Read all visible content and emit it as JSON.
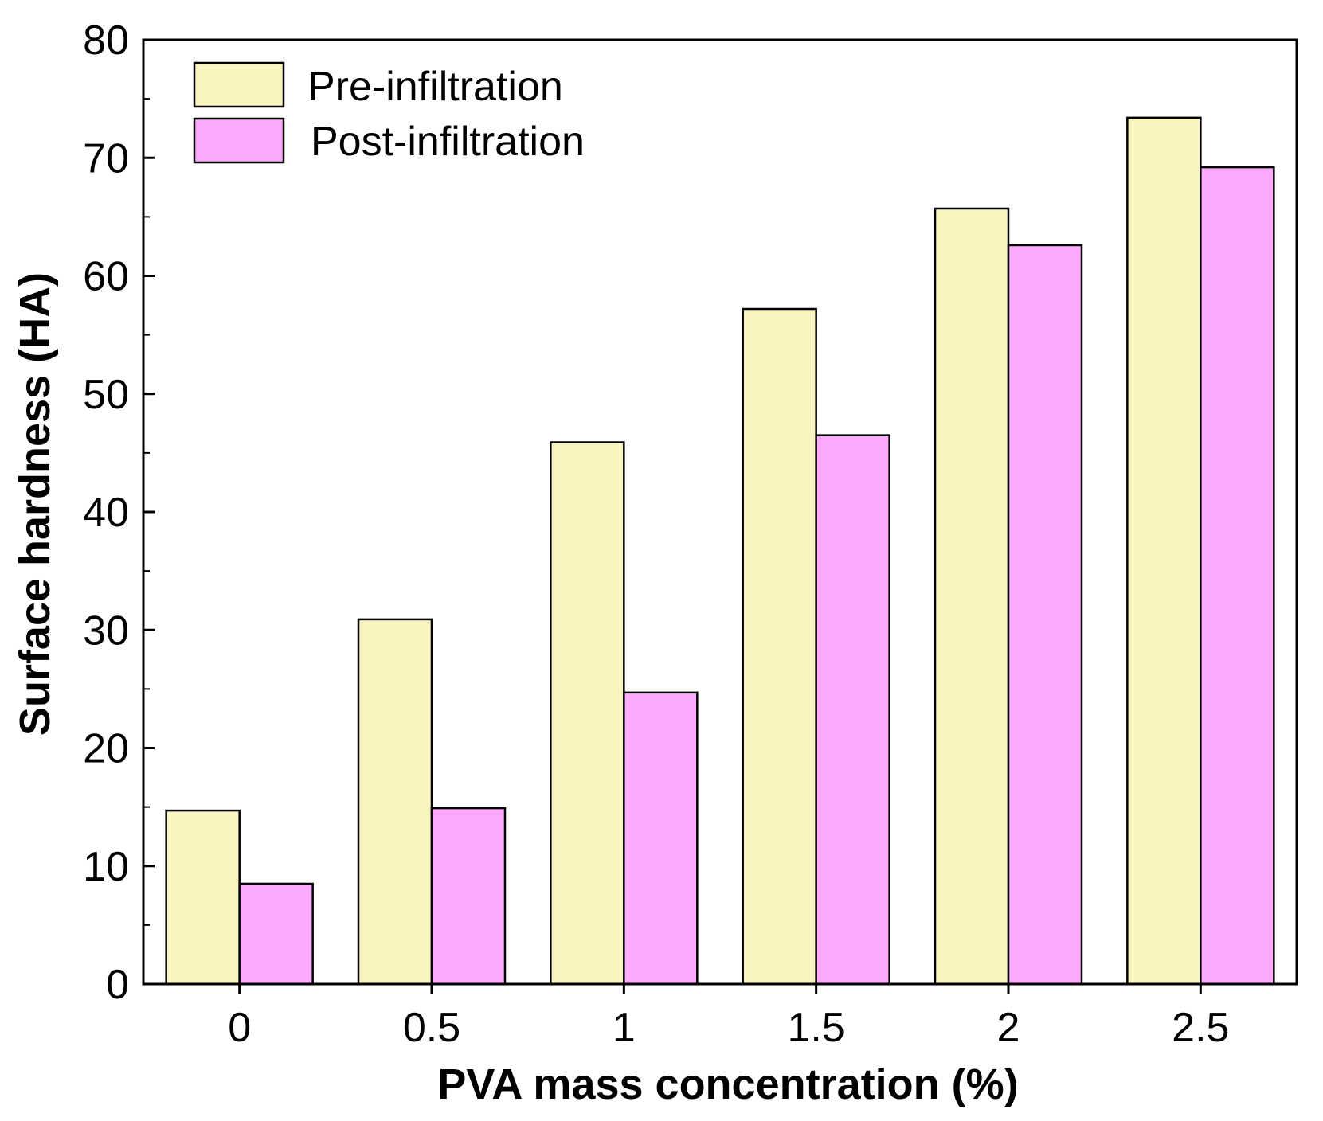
{
  "chart_data": {
    "type": "bar",
    "title": "",
    "xlabel": "PVA mass concentration (%)",
    "ylabel": "Surface hardness (HA)",
    "categories": [
      "0",
      "0.5",
      "1",
      "1.5",
      "2",
      "2.5"
    ],
    "series": [
      {
        "name": "Pre-infiltration",
        "color": "#f8f4c0",
        "values": [
          14.7,
          30.9,
          45.9,
          57.2,
          65.7,
          73.4
        ]
      },
      {
        "name": "Post-infiltration",
        "color": "#fdaafd",
        "values": [
          8.5,
          14.9,
          24.7,
          46.5,
          62.6,
          69.2
        ]
      }
    ],
    "ylim": [
      0,
      80
    ],
    "yticks": [
      0,
      10,
      20,
      30,
      40,
      50,
      60,
      70,
      80
    ],
    "grid": false,
    "legend_position": "top-left"
  }
}
